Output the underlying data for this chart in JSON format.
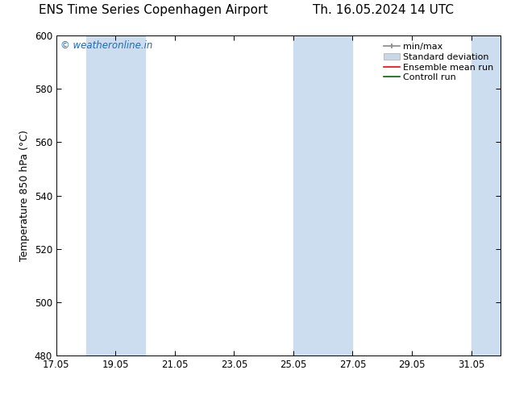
{
  "title_left": "ENS Time Series Copenhagen Airport",
  "title_right": "Th. 16.05.2024 14 UTC",
  "ylabel": "Temperature 850 hPa (°C)",
  "ylim": [
    480,
    600
  ],
  "yticks": [
    480,
    500,
    520,
    540,
    560,
    580,
    600
  ],
  "xlim_start": 17.05,
  "xlim_end": 32.05,
  "xticks": [
    17.05,
    19.05,
    21.05,
    23.05,
    25.05,
    27.05,
    29.05,
    31.05
  ],
  "xticklabels": [
    "17.05",
    "19.05",
    "21.05",
    "23.05",
    "25.05",
    "27.05",
    "29.05",
    "31.05"
  ],
  "bg_color": "#ffffff",
  "plot_bg_color": "#ffffff",
  "watermark_text": "© weatheronline.in",
  "watermark_color": "#1a6bbf",
  "shaded_bands": [
    {
      "x_start": 18.05,
      "x_end": 19.05,
      "color": "#ccddf0",
      "alpha": 1.0
    },
    {
      "x_start": 19.05,
      "x_end": 20.05,
      "color": "#ccddf0",
      "alpha": 1.0
    },
    {
      "x_start": 25.05,
      "x_end": 26.05,
      "color": "#ccddf0",
      "alpha": 1.0
    },
    {
      "x_start": 26.05,
      "x_end": 27.05,
      "color": "#ccddf0",
      "alpha": 1.0
    },
    {
      "x_start": 31.05,
      "x_end": 32.05,
      "color": "#ccddf0",
      "alpha": 1.0
    }
  ],
  "legend_items": [
    {
      "label": "min/max",
      "type": "minmax"
    },
    {
      "label": "Standard deviation",
      "type": "stddev"
    },
    {
      "label": "Ensemble mean run",
      "type": "line",
      "color": "#ff0000"
    },
    {
      "label": "Controll run",
      "type": "line",
      "color": "#008000"
    }
  ],
  "title_fontsize": 11,
  "tick_fontsize": 8.5,
  "ylabel_fontsize": 9,
  "legend_fontsize": 8
}
